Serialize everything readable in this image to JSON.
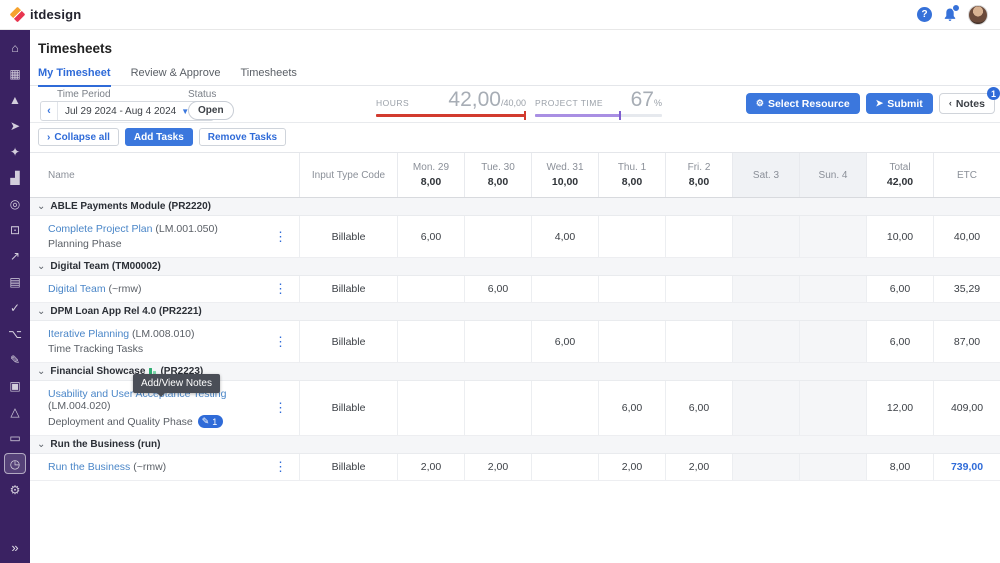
{
  "header": {
    "brand": "itdesign",
    "help_label": "?"
  },
  "sidebar": {
    "items": [
      {
        "name": "home",
        "glyph": "⌂"
      },
      {
        "name": "dashboard",
        "glyph": "▦"
      },
      {
        "name": "portfolio",
        "glyph": "▲"
      },
      {
        "name": "initiatives",
        "glyph": "➤"
      },
      {
        "name": "ideas",
        "glyph": "✦"
      },
      {
        "name": "reports",
        "glyph": "▟"
      },
      {
        "name": "goals",
        "glyph": "◎"
      },
      {
        "name": "boards",
        "glyph": "⊡"
      },
      {
        "name": "trends",
        "glyph": "↗"
      },
      {
        "name": "plans",
        "glyph": "▤"
      },
      {
        "name": "tasks",
        "glyph": "✓"
      },
      {
        "name": "org-chart",
        "glyph": "⌥"
      },
      {
        "name": "assignments",
        "glyph": "✎"
      },
      {
        "name": "knowledge",
        "glyph": "▣"
      },
      {
        "name": "hierarchy",
        "glyph": "△"
      },
      {
        "name": "conversations",
        "glyph": "▭"
      },
      {
        "name": "timesheets",
        "glyph": "◷",
        "active": true
      },
      {
        "name": "administration",
        "glyph": "⚙"
      }
    ],
    "expand_glyph": "»"
  },
  "page": {
    "title": "Timesheets"
  },
  "tabs": [
    {
      "label": "My Timesheet",
      "active": true
    },
    {
      "label": "Review & Approve",
      "active": false
    },
    {
      "label": "Timesheets",
      "active": false
    }
  ],
  "filters": {
    "time_period": {
      "label": "Time Period",
      "value": "Jul 29 2024 - Aug 4 2024"
    },
    "status": {
      "label": "Status",
      "value": "Open"
    }
  },
  "meters": {
    "hours": {
      "label": "HOURS",
      "value": "42,00",
      "target": "/40,00",
      "fill_pct": 100,
      "color": "#d23b2f"
    },
    "project_time": {
      "label": "PROJECT TIME",
      "value": "67",
      "unit": "%",
      "fill_pct": 67,
      "color": "#a98fe3",
      "tick_color": "#7f5fd0"
    }
  },
  "actions": {
    "select_resource": "Select Resource",
    "submit": "Submit",
    "notes": "Notes",
    "notes_badge": "1"
  },
  "toolbar": {
    "collapse_all": "Collapse all",
    "add_tasks": "Add Tasks",
    "remove_tasks": "Remove Tasks"
  },
  "table": {
    "columns": [
      {
        "label": "Name"
      },
      {
        "label": "Input Type Code"
      },
      {
        "label": "Mon. 29",
        "total": "8,00"
      },
      {
        "label": "Tue. 30",
        "total": "8,00"
      },
      {
        "label": "Wed. 31",
        "total": "10,00"
      },
      {
        "label": "Thu. 1",
        "total": "8,00"
      },
      {
        "label": "Fri. 2",
        "total": "8,00"
      },
      {
        "label": "Sat. 3",
        "weekend": true
      },
      {
        "label": "Sun. 4",
        "weekend": true
      },
      {
        "label": "Total",
        "total": "42,00"
      },
      {
        "label": "ETC"
      }
    ],
    "groups": [
      {
        "title": "ABLE Payments Module",
        "suffix": "(PR2220)",
        "rows": [
          {
            "name": "Complete Project Plan",
            "code": "(LM.001.050)",
            "sub": "Planning Phase",
            "input_type": "Billable",
            "days": [
              "6,00",
              "",
              "4,00",
              "",
              "",
              "",
              ""
            ],
            "total": "10,00",
            "etc": "40,00"
          }
        ]
      },
      {
        "title": "Digital Team",
        "suffix": "(TM00002)",
        "rows": [
          {
            "name": "Digital Team",
            "code": "(~rmw)",
            "sub": "",
            "input_type": "Billable",
            "days": [
              "",
              "6,00",
              "",
              "",
              "",
              "",
              ""
            ],
            "total": "6,00",
            "etc": "35,29"
          }
        ]
      },
      {
        "title": "DPM Loan App Rel 4.0",
        "suffix": "(PR2221)",
        "rows": [
          {
            "name": "Iterative Planning",
            "code": "(LM.008.010)",
            "sub": "Time Tracking Tasks",
            "input_type": "Billable",
            "days": [
              "",
              "",
              "6,00",
              "",
              "",
              "",
              ""
            ],
            "total": "6,00",
            "etc": "87,00"
          }
        ]
      },
      {
        "title": "Financial Showcase",
        "chart_icon": true,
        "suffix": "(PR2223)",
        "rows": [
          {
            "name": "Usability and User Acceptance Testing",
            "code": "(LM.004.020)",
            "sub": "Deployment and Quality Phase",
            "note_badge": "1",
            "tooltip": "Add/View Notes",
            "input_type": "Billable",
            "days": [
              "",
              "",
              "",
              "6,00",
              "6,00",
              "",
              ""
            ],
            "total": "12,00",
            "etc": "409,00"
          }
        ]
      },
      {
        "title": "Run the Business",
        "suffix": "(run)",
        "rows": [
          {
            "name": "Run the Business",
            "code": "(~rmw)",
            "sub": "",
            "input_type": "Billable",
            "days": [
              "2,00",
              "2,00",
              "",
              "2,00",
              "2,00",
              "",
              ""
            ],
            "total": "8,00",
            "etc": "739,00",
            "etc_highlight": true
          }
        ]
      }
    ]
  },
  "colors": {
    "accent_blue": "#3b77dd",
    "link_blue": "#4a86c8",
    "sidebar_purple": "#3a2262",
    "hours_red": "#d23b2f",
    "project_purple": "#a98fe3",
    "green_icon": "#2fae72"
  }
}
